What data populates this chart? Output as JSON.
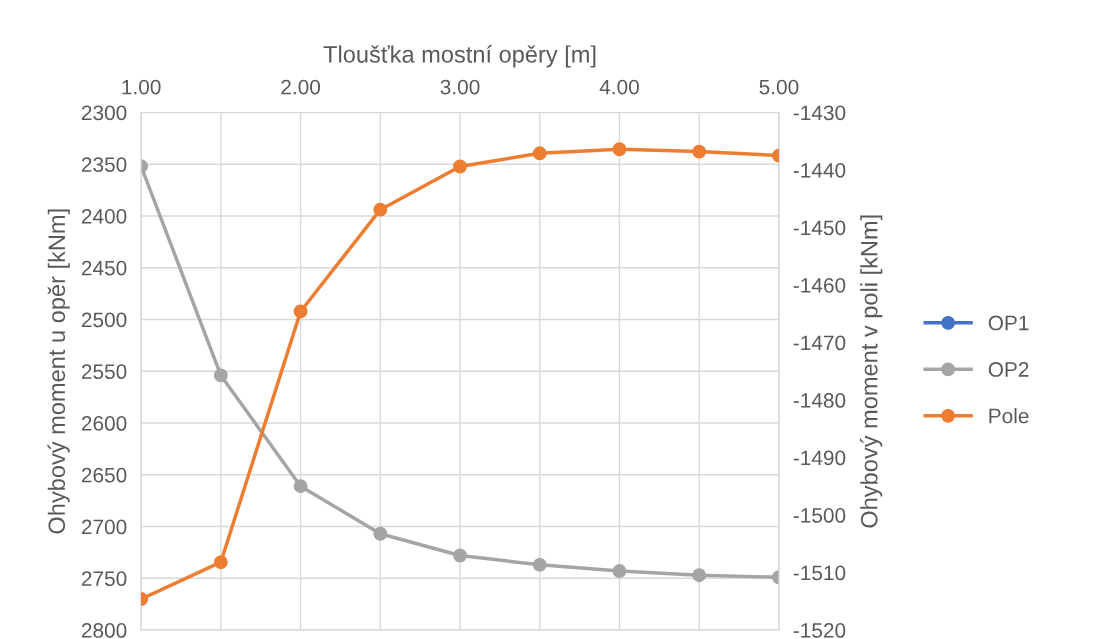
{
  "chart_data": {
    "type": "line",
    "xlabel": "Tloušťka mostní opěry [m]",
    "ylabel": "Ohybový moment u opěr [kNm]",
    "y2label": "Ohybový moment v poli [kNm]",
    "x": [
      1,
      1.5,
      2,
      2.5,
      3,
      3.5,
      4,
      4.5,
      5
    ],
    "series": [
      {
        "name": "OP1",
        "color": "#4472c4",
        "values": [
          null,
          null,
          null,
          null,
          null,
          null,
          null,
          null,
          null
        ]
      },
      {
        "name": "OP2",
        "color": "#a5a5a5",
        "values": [
          2352,
          2554,
          2661,
          2707,
          2728,
          2737,
          2743,
          2747,
          2749
        ]
      },
      {
        "name": "Pole",
        "color": "#ed7d31",
        "axis": "y2",
        "values": [
          -1514.6,
          -1508.2,
          -1464.6,
          -1446.9,
          -1439.4,
          -1437.1,
          -1436.4,
          -1436.8,
          -1437.5
        ]
      }
    ],
    "xlim": [
      1,
      5
    ],
    "xticks": [
      {
        "value": 1,
        "label": "1.00"
      },
      {
        "value": 1.5,
        "label": null
      },
      {
        "value": 2,
        "label": "2.00"
      },
      {
        "value": 2.5,
        "label": null
      },
      {
        "value": 3,
        "label": "3.00"
      },
      {
        "value": 3.5,
        "label": null
      },
      {
        "value": 4,
        "label": "4.00"
      },
      {
        "value": 4.5,
        "label": null
      },
      {
        "value": 5,
        "label": "5.00"
      }
    ],
    "ylim": [
      2800,
      2300
    ],
    "yticks": [
      2300,
      2350,
      2400,
      2450,
      2500,
      2550,
      2600,
      2650,
      2700,
      2750,
      2800
    ],
    "y2lim": [
      -1520,
      -1430
    ],
    "y2ticks": [
      -1430,
      -1440,
      -1450,
      -1460,
      -1470,
      -1480,
      -1490,
      -1500,
      -1510,
      -1520
    ],
    "grid": true,
    "legend": "right",
    "marker": "circle",
    "line_style": "solid"
  }
}
